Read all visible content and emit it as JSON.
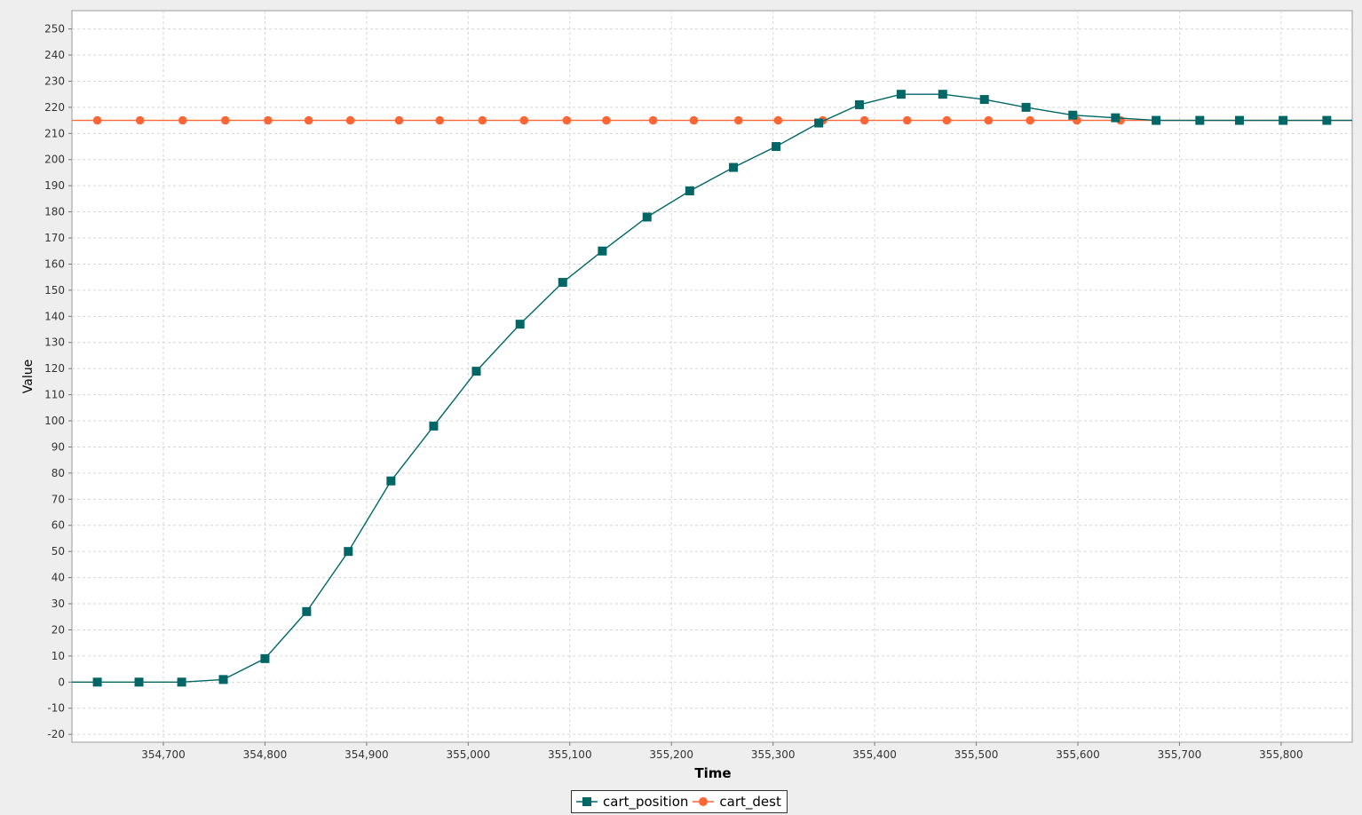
{
  "chart_data": {
    "type": "line",
    "xlabel": "Time",
    "ylabel": "Value",
    "xlim": [
      354610,
      355870
    ],
    "ylim": [
      -23,
      257
    ],
    "xticks": [
      354700,
      354800,
      354900,
      355000,
      355100,
      355200,
      355300,
      355400,
      355500,
      355600,
      355700,
      355800
    ],
    "xtick_labels": [
      "354,700",
      "354,800",
      "354,900",
      "355,000",
      "355,100",
      "355,200",
      "355,300",
      "355,400",
      "355,500",
      "355,600",
      "355,700",
      "355,800"
    ],
    "yticks": [
      -20,
      -10,
      0,
      10,
      20,
      30,
      40,
      50,
      60,
      70,
      80,
      90,
      100,
      110,
      120,
      130,
      140,
      150,
      160,
      170,
      180,
      190,
      200,
      210,
      220,
      230,
      240,
      250
    ],
    "grid": true,
    "legend_position": "bottom",
    "series": [
      {
        "name": "cart_position",
        "color": "#006666",
        "marker": "square",
        "x": [
          354635,
          354676,
          354718,
          354759,
          354800,
          354841,
          354882,
          354924,
          354966,
          355008,
          355051,
          355093,
          355132,
          355176,
          355218,
          355261,
          355303,
          355345,
          355385,
          355426,
          355467,
          355508,
          355549,
          355595,
          355637,
          355677,
          355720,
          355759,
          355802,
          355845
        ],
        "y": [
          0,
          0,
          0,
          1,
          9,
          27,
          50,
          77,
          98,
          119,
          137,
          153,
          165,
          178,
          188,
          197,
          205,
          214,
          221,
          225,
          225,
          223,
          220,
          217,
          216,
          215,
          215,
          215,
          215,
          215
        ],
        "line_from_x": 354610,
        "line_to_x": 355870
      },
      {
        "name": "cart_dest",
        "color": "#ff6633",
        "marker": "circle",
        "x": [
          354635,
          354677,
          354719,
          354761,
          354803,
          354843,
          354884,
          354932,
          354972,
          355014,
          355055,
          355097,
          355136,
          355182,
          355222,
          355266,
          355305,
          355349,
          355390,
          355432,
          355471,
          355512,
          355553,
          355599,
          355642
        ],
        "y": [
          215,
          215,
          215,
          215,
          215,
          215,
          215,
          215,
          215,
          215,
          215,
          215,
          215,
          215,
          215,
          215,
          215,
          215,
          215,
          215,
          215,
          215,
          215,
          215,
          215
        ],
        "line_from_x": 354610,
        "line_to_x": 355870
      }
    ]
  }
}
